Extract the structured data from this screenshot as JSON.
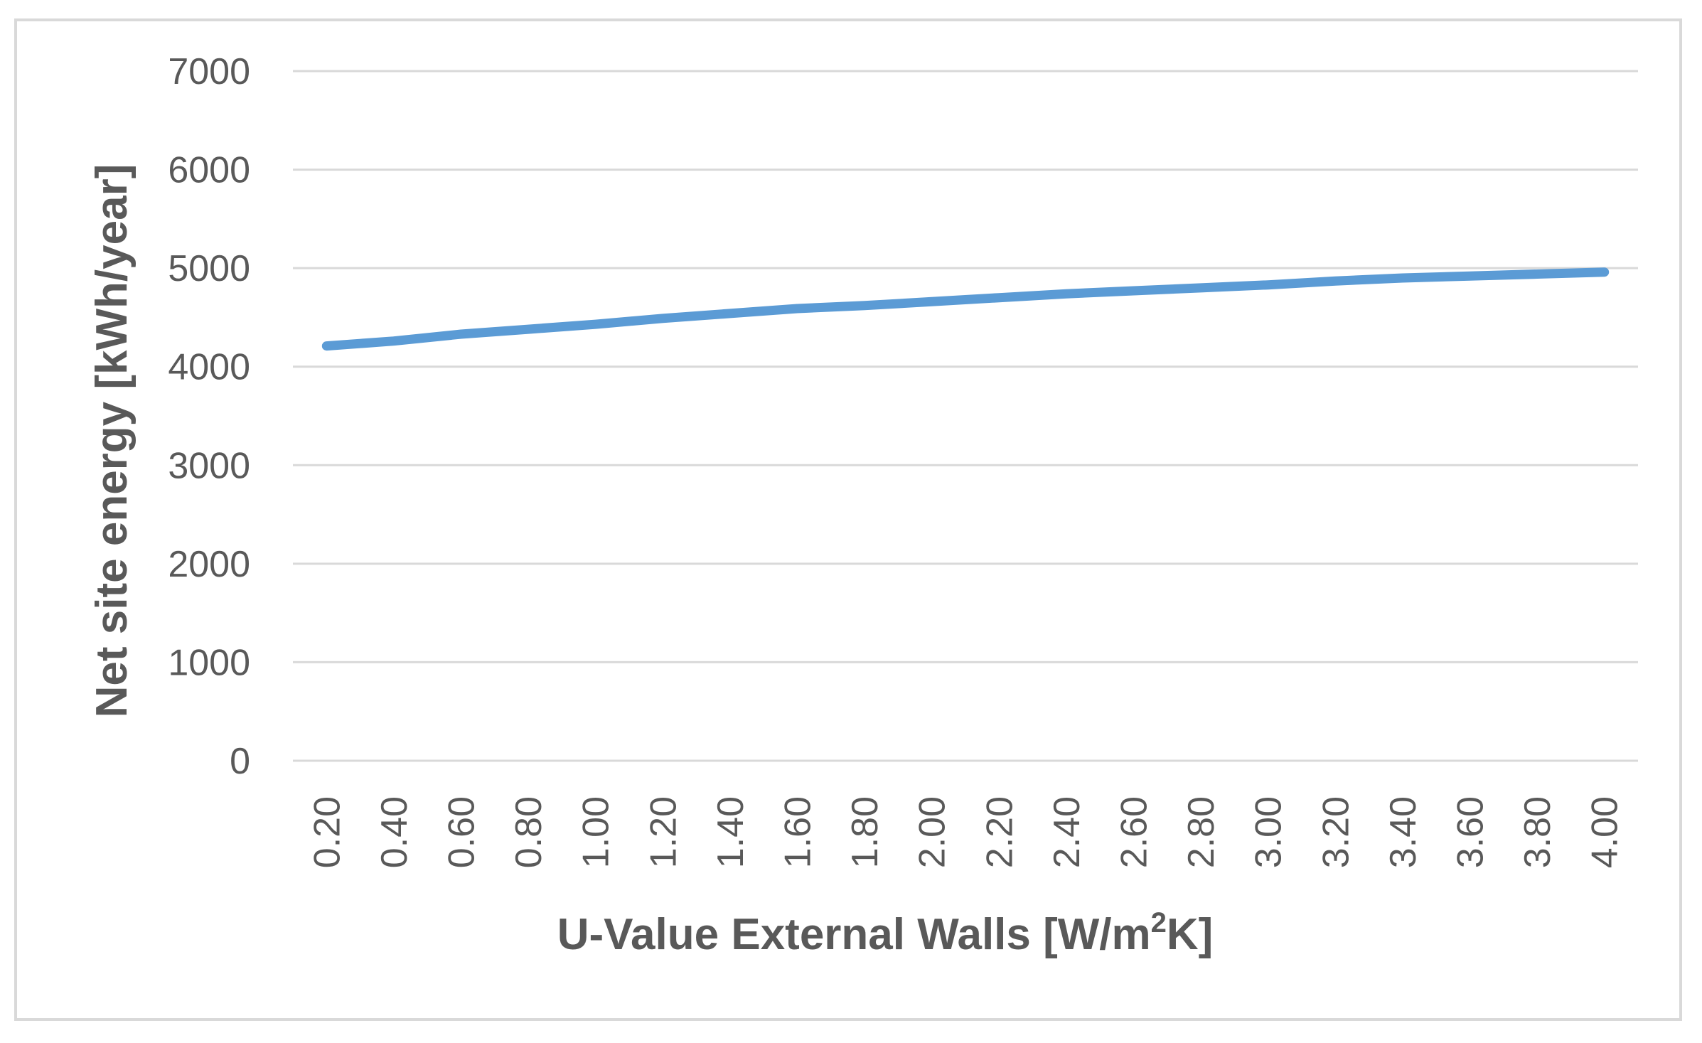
{
  "chart_data": {
    "type": "line",
    "xlabel": "U-Value External Walls [W/m",
    "xlabel_superscript": "2",
    "xlabel_suffix": "K]",
    "ylabel": "Net site energy [kWh/year]",
    "ylim": [
      0,
      7000
    ],
    "yticks": [
      "0",
      "1000",
      "2000",
      "3000",
      "4000",
      "5000",
      "6000",
      "7000"
    ],
    "categories": [
      "0.20",
      "0.40",
      "0.60",
      "0.80",
      "1.00",
      "1.20",
      "1.40",
      "1.60",
      "1.80",
      "2.00",
      "2.20",
      "2.40",
      "2.60",
      "2.80",
      "3.00",
      "3.20",
      "3.40",
      "3.60",
      "3.80",
      "4.00"
    ],
    "series": [
      {
        "values": [
          4210,
          4260,
          4330,
          4380,
          4430,
          4490,
          4540,
          4590,
          4620,
          4660,
          4700,
          4740,
          4770,
          4800,
          4830,
          4870,
          4900,
          4920,
          4940,
          4960
        ],
        "color": "#5b9bd5"
      }
    ],
    "grid": true,
    "legend": "none"
  }
}
